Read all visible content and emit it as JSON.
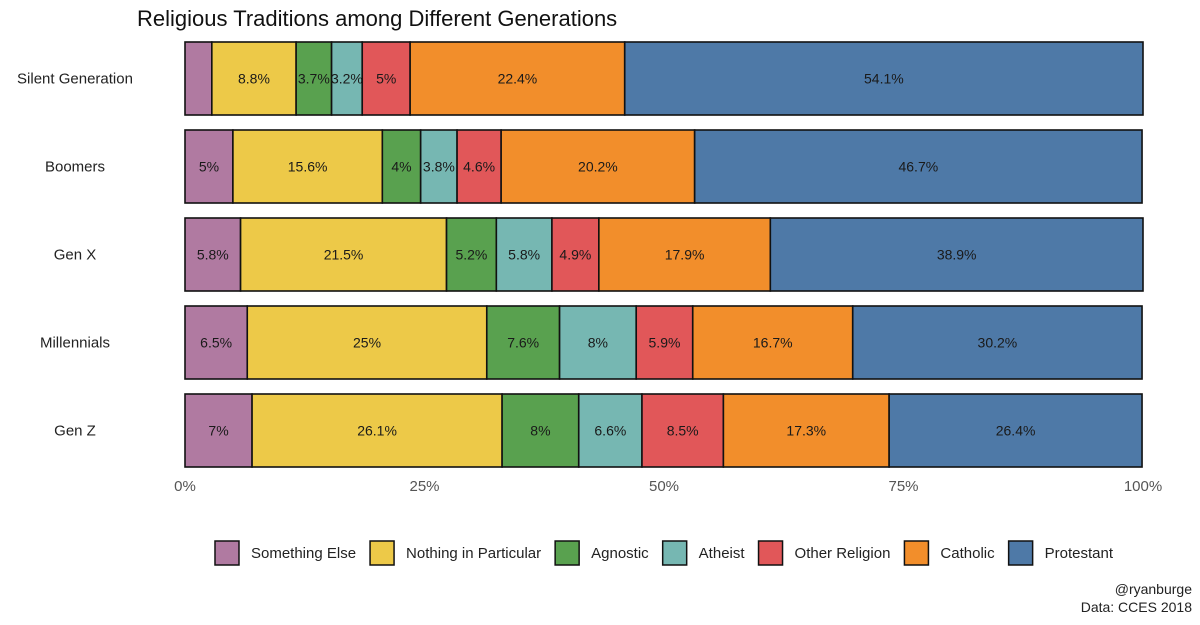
{
  "chart_data": {
    "type": "bar",
    "orientation": "horizontal",
    "stacked": true,
    "title": "Religious Traditions among Different Generations",
    "categories": [
      "Silent Generation",
      "Boomers",
      "Gen X",
      "Millennials",
      "Gen Z"
    ],
    "series": [
      {
        "name": "Something Else",
        "color": "#B07AA1",
        "values": [
          2.8,
          5.0,
          5.8,
          6.5,
          7.0
        ],
        "labels": [
          "",
          "5%",
          "5.8%",
          "6.5%",
          "7%"
        ]
      },
      {
        "name": "Nothing in Particular",
        "color": "#EDC948",
        "values": [
          8.8,
          15.6,
          21.5,
          25.0,
          26.1
        ],
        "labels": [
          "8.8%",
          "15.6%",
          "21.5%",
          "25%",
          "26.1%"
        ]
      },
      {
        "name": "Agnostic",
        "color": "#59A14F",
        "values": [
          3.7,
          4.0,
          5.2,
          7.6,
          8.0
        ],
        "labels": [
          "3.7%",
          "4%",
          "5.2%",
          "7.6%",
          "8%"
        ]
      },
      {
        "name": "Atheist",
        "color": "#76B7B2",
        "values": [
          3.2,
          3.8,
          5.8,
          8.0,
          6.6
        ],
        "labels": [
          "3.2%",
          "3.8%",
          "5.8%",
          "8%",
          "6.6%"
        ]
      },
      {
        "name": "Other Religion",
        "color": "#E15759",
        "values": [
          5.0,
          4.6,
          4.9,
          5.9,
          8.5
        ],
        "labels": [
          "5%",
          "4.6%",
          "4.9%",
          "5.9%",
          "8.5%"
        ]
      },
      {
        "name": "Catholic",
        "color": "#F28E2B",
        "values": [
          22.4,
          20.2,
          17.9,
          16.7,
          17.3
        ],
        "labels": [
          "22.4%",
          "20.2%",
          "17.9%",
          "16.7%",
          "17.3%"
        ]
      },
      {
        "name": "Protestant",
        "color": "#4E79A7",
        "values": [
          54.1,
          46.7,
          38.9,
          30.2,
          26.4
        ],
        "labels": [
          "54.1%",
          "46.7%",
          "38.9%",
          "30.2%",
          "26.4%"
        ]
      }
    ],
    "xticks": [
      "0%",
      "25%",
      "50%",
      "75%",
      "100%"
    ],
    "xlim": [
      0,
      100
    ],
    "legend_position": "bottom",
    "grid": false
  },
  "caption": {
    "line1": "@ryanburge",
    "line2": "Data: CCES 2018"
  }
}
